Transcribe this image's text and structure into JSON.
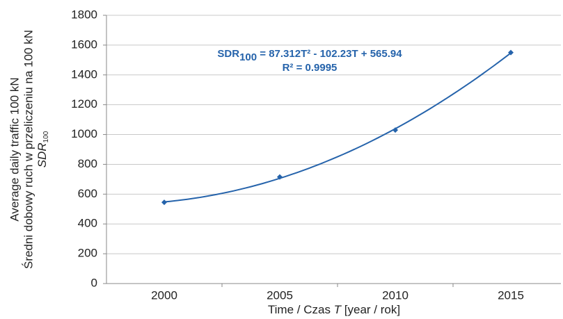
{
  "chart_data": {
    "type": "scatter",
    "categories": [
      "2000",
      "2005",
      "2010",
      "2015"
    ],
    "series": [
      {
        "name": "SDR100",
        "color": "#2563ab",
        "values": [
          545,
          715,
          1030,
          1550
        ]
      }
    ],
    "trendline": "poly2",
    "ylim": [
      0,
      1800
    ],
    "yticks": [
      0,
      200,
      400,
      600,
      800,
      1000,
      1200,
      1400,
      1600,
      1800
    ],
    "grid": true,
    "y_label": [
      "Average daily traffic 100 kN",
      "Średni dobowy ruch w przeliczeniu na 100 kN"
    ],
    "y_label_symbol": {
      "main": "SDR",
      "sub": "100"
    },
    "x_label": {
      "before": "Time / Czas ",
      "symbol": "T",
      "after": " [year / rok]"
    },
    "equation": {
      "lhs": "SDR",
      "sub": "100",
      "rhs": " = 87.312T² - 102.23T + 565.94"
    },
    "r_squared": "R² = 0.9995"
  }
}
